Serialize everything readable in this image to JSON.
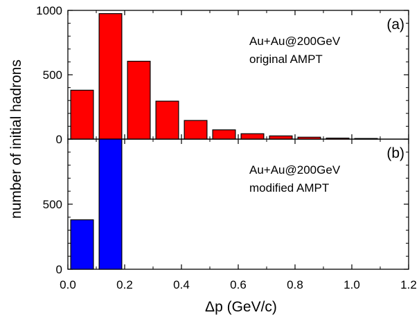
{
  "chart_data": [
    {
      "type": "bar",
      "panel_label": "(a)",
      "annotation": [
        "Au+Au@200GeV",
        "original AMPT"
      ],
      "xlim": [
        0,
        1.2
      ],
      "ylim": [
        0,
        1000
      ],
      "bar_width": 0.08,
      "color": "#ff0000",
      "x": [
        0.05,
        0.15,
        0.25,
        0.35,
        0.45,
        0.55,
        0.65,
        0.75,
        0.85,
        0.95,
        1.05
      ],
      "values": [
        380,
        975,
        605,
        295,
        145,
        72,
        42,
        25,
        15,
        8,
        5
      ],
      "yticks": [
        0,
        500,
        1000
      ],
      "ytick_labels": [
        "0",
        "500",
        "1000"
      ]
    },
    {
      "type": "bar",
      "panel_label": "(b)",
      "annotation": [
        "Au+Au@200GeV",
        "modified AMPT"
      ],
      "xlim": [
        0,
        1.2
      ],
      "ylim": [
        0,
        1000
      ],
      "bar_width": 0.08,
      "color": "#0000ff",
      "x": [
        0.05,
        0.15
      ],
      "values": [
        380,
        1000
      ],
      "yticks": [
        0,
        500
      ],
      "ytick_labels": [
        "0",
        "500"
      ]
    }
  ],
  "shared": {
    "xlabel": "Δp (GeV/c)",
    "ylabel": "number of initial hadrons",
    "xticks": [
      0.0,
      0.2,
      0.4,
      0.6,
      0.8,
      1.0,
      1.2
    ],
    "xtick_labels": [
      "0.0",
      "0.2",
      "0.4",
      "0.6",
      "0.8",
      "1.0",
      "1.2"
    ]
  }
}
